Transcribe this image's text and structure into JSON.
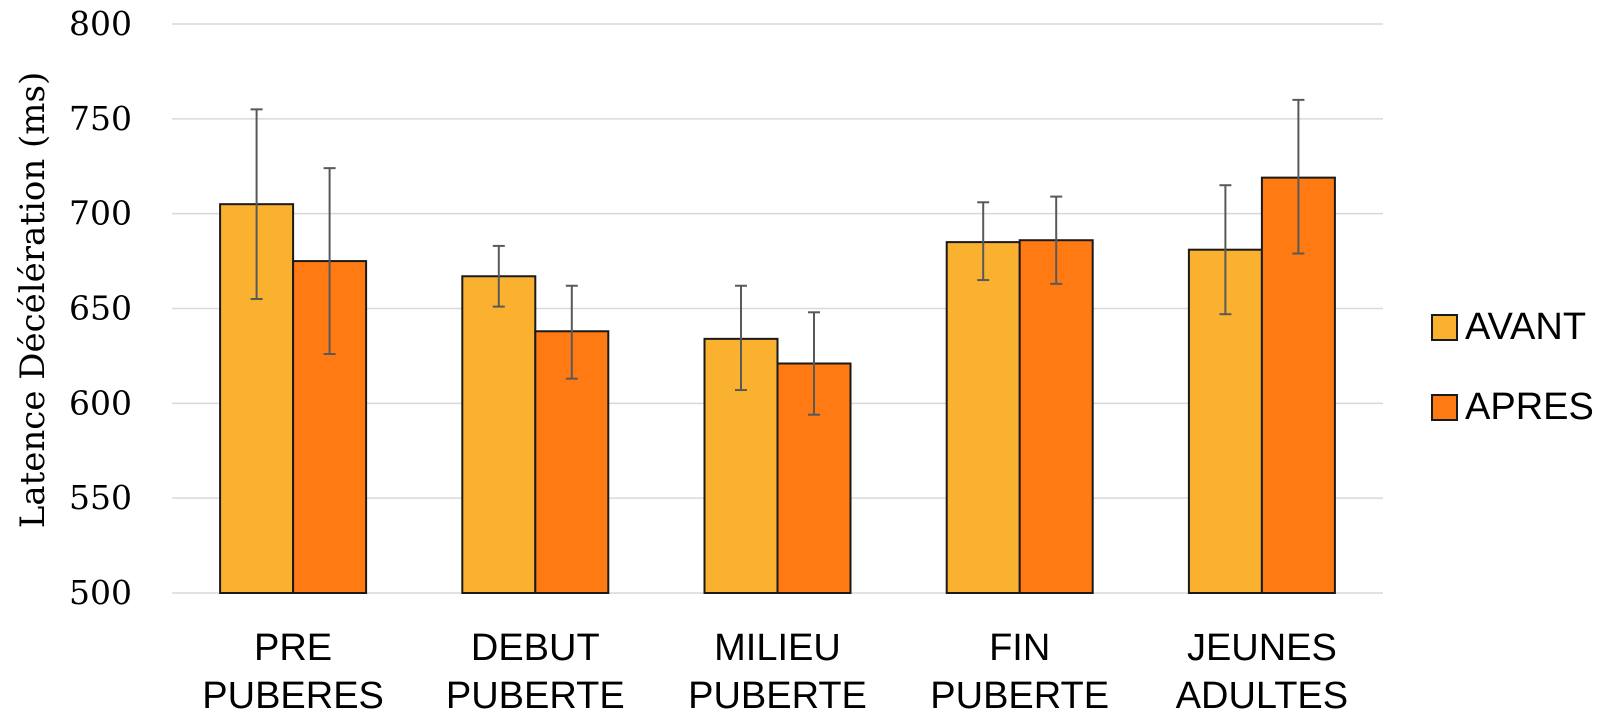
{
  "chart_data": {
    "type": "bar",
    "ylabel": "Latence Décélération (ms)",
    "xlabel": "",
    "ylim": [
      500,
      800
    ],
    "yticks": [
      500,
      550,
      600,
      650,
      700,
      750,
      800
    ],
    "grid": true,
    "legend_position": "right",
    "categories": [
      [
        "PRE",
        "PUBERES"
      ],
      [
        "DEBUT",
        "PUBERTE"
      ],
      [
        "MILIEU",
        "PUBERTE"
      ],
      [
        "FIN",
        "PUBERTE"
      ],
      [
        "JEUNES",
        "ADULTES"
      ]
    ],
    "series": [
      {
        "name": "AVANT",
        "color": "#FBB130",
        "values": [
          705,
          667,
          634,
          685,
          681
        ],
        "error_low": [
          655,
          651,
          607,
          665,
          647
        ],
        "error_high": [
          755,
          683,
          662,
          706,
          715
        ]
      },
      {
        "name": "APRES",
        "color": "#FF7A12",
        "values": [
          675,
          638,
          621,
          686,
          719
        ],
        "error_low": [
          626,
          613,
          594,
          663,
          679
        ],
        "error_high": [
          724,
          662,
          648,
          709,
          760
        ]
      }
    ]
  }
}
